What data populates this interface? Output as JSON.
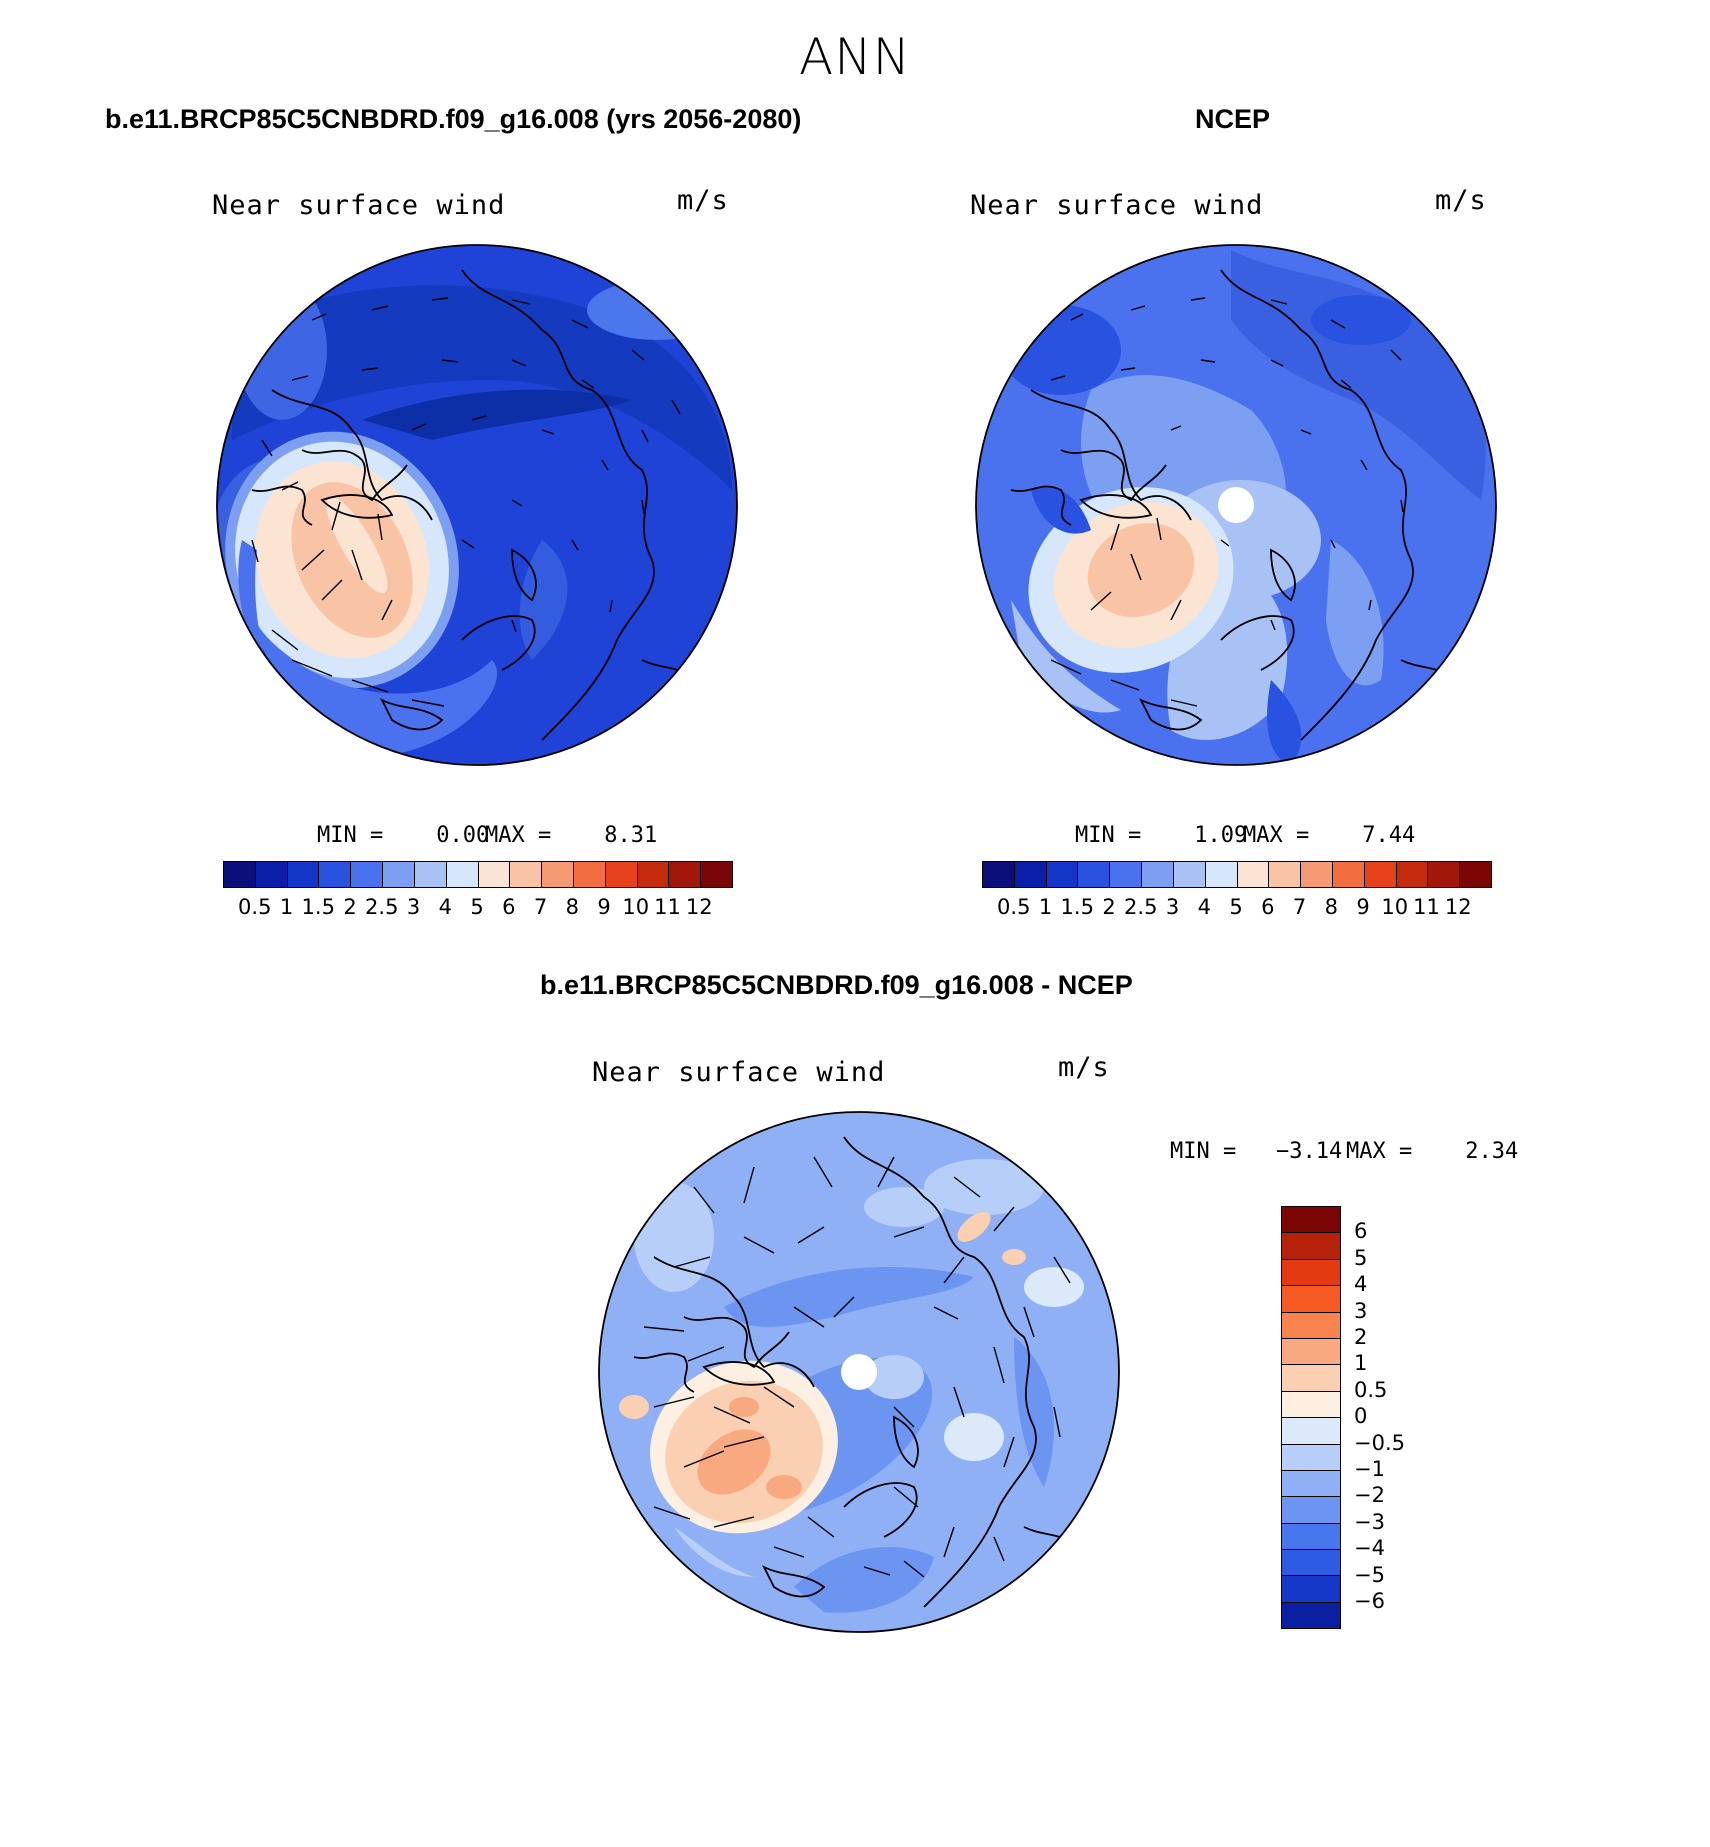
{
  "figure": {
    "title": "ANN"
  },
  "panels": [
    {
      "id": "model",
      "title": "b.e11.BRCP85C5CNBDRD.f09_g16.008 (yrs 2056-2080)",
      "variable": "Near surface wind",
      "units": "m/s",
      "min_label": "MIN =    0.00",
      "max_label": "MAX =    8.31"
    },
    {
      "id": "obs",
      "title": "NCEP",
      "variable": "Near surface wind",
      "units": "m/s",
      "min_label": "MIN =    1.09",
      "max_label": "MAX =    7.44"
    },
    {
      "id": "diff",
      "title": "b.e11.BRCP85C5CNBDRD.f09_g16.008 - NCEP",
      "variable": "Near surface wind",
      "units": "m/s",
      "min_label": "MIN =   −3.14",
      "max_label": "MAX =    2.34"
    }
  ],
  "colorbar_abs": {
    "colors": [
      "#0b0f7a",
      "#0b1ea8",
      "#1336c8",
      "#2a52e0",
      "#4a72ee",
      "#7d9ff2",
      "#a9c2f6",
      "#d6e6fb",
      "#fbe5d2",
      "#f9c4a6",
      "#f59a73",
      "#f26d3f",
      "#e8421b",
      "#c42a0c",
      "#a1180a",
      "#7c0606"
    ],
    "ticks": [
      "0.5",
      "1",
      "1.5",
      "2",
      "2.5",
      "3",
      "4",
      "5",
      "6",
      "7",
      "8",
      "9",
      "10",
      "11",
      "12"
    ]
  },
  "colorbar_diff": {
    "colors": [
      "#7c0606",
      "#b52209",
      "#e43a12",
      "#f75a21",
      "#f8834e",
      "#f8a980",
      "#fbcfb2",
      "#fdf0e2",
      "#dce9fb",
      "#b7cff8",
      "#8fb0f4",
      "#6b95f0",
      "#4777ec",
      "#2c5be4",
      "#1638c8",
      "#0a1fa2"
    ],
    "ticks": [
      "6",
      "5",
      "4",
      "3",
      "2",
      "1",
      "0.5",
      "0",
      "−0.5",
      "−1",
      "−2",
      "−3",
      "−4",
      "−5",
      "−6"
    ]
  }
}
